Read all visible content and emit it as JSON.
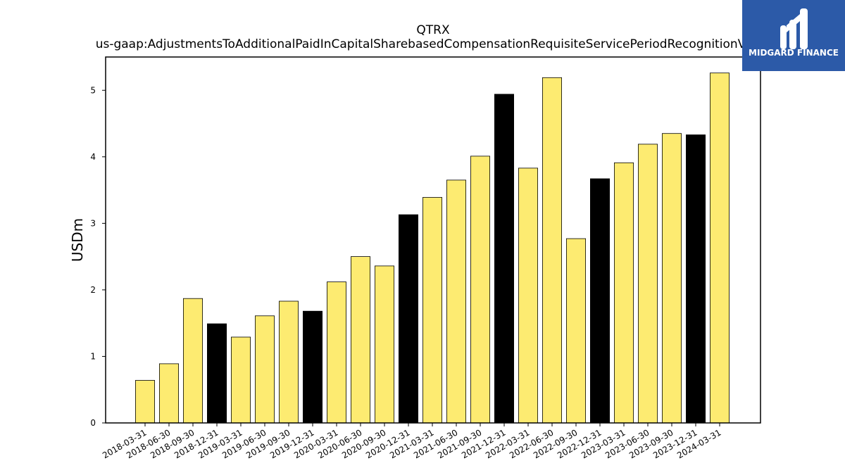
{
  "chart_data": {
    "type": "bar",
    "title": "QTRX",
    "subtitle": "us-gaap:AdjustmentsToAdditionalPaidInCapitalSharebasedCompensationRequisiteServicePeriodRecognitionValue",
    "xlabel": "",
    "ylabel": "USDm",
    "ylim": [
      0,
      5.5
    ],
    "yticks": [
      0,
      1,
      2,
      3,
      4,
      5
    ],
    "grid": false,
    "categories": [
      "2018-03-31",
      "2018-06-30",
      "2018-09-30",
      "2018-12-31",
      "2019-03-31",
      "2019-06-30",
      "2019-09-30",
      "2019-12-31",
      "2020-03-31",
      "2020-06-30",
      "2020-09-30",
      "2020-12-31",
      "2021-03-31",
      "2021-06-30",
      "2021-09-30",
      "2021-12-31",
      "2022-03-31",
      "2022-06-30",
      "2022-09-30",
      "2022-12-31",
      "2023-03-31",
      "2023-06-30",
      "2023-09-30",
      "2023-12-31",
      "2024-03-31"
    ],
    "values": [
      0.64,
      0.89,
      1.87,
      1.49,
      1.29,
      1.61,
      1.83,
      1.68,
      2.12,
      2.5,
      2.36,
      3.13,
      3.39,
      3.65,
      4.01,
      4.94,
      3.83,
      5.19,
      2.77,
      3.67,
      3.91,
      4.19,
      4.35,
      4.33,
      5.26
    ],
    "colors": {
      "quarter": "#fdeb71",
      "year_end": "#000000",
      "edge": "#000000"
    }
  },
  "logo": {
    "text": "MIDGARD FINANCE",
    "background": "#2c5aa8"
  }
}
